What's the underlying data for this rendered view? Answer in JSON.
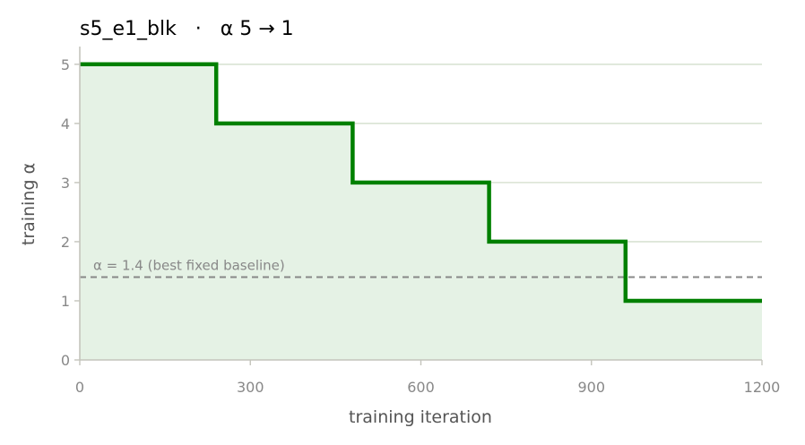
{
  "chart_data": {
    "type": "line",
    "title": "s5_e1_blk   ·   α 5 → 1",
    "xlabel": "training iteration",
    "ylabel": "training α",
    "xlim": [
      0,
      1200
    ],
    "ylim": [
      0,
      5.3
    ],
    "x_ticks": [
      "0",
      "300",
      "600",
      "900",
      "1200"
    ],
    "y_ticks": [
      "0",
      "1",
      "2",
      "3",
      "4",
      "5"
    ],
    "grid": "horizontal",
    "series": [
      {
        "step": "post",
        "x": [
          0,
          240,
          480,
          720,
          960,
          1200
        ],
        "y": [
          5,
          4,
          3,
          2,
          1,
          1
        ],
        "color": "#008000",
        "fill": "#e5f2e5"
      }
    ],
    "reference_line": {
      "y": 1.4,
      "label": "α = 1.4 (best fixed baseline)",
      "style": "dashed",
      "color": "#888888"
    }
  }
}
